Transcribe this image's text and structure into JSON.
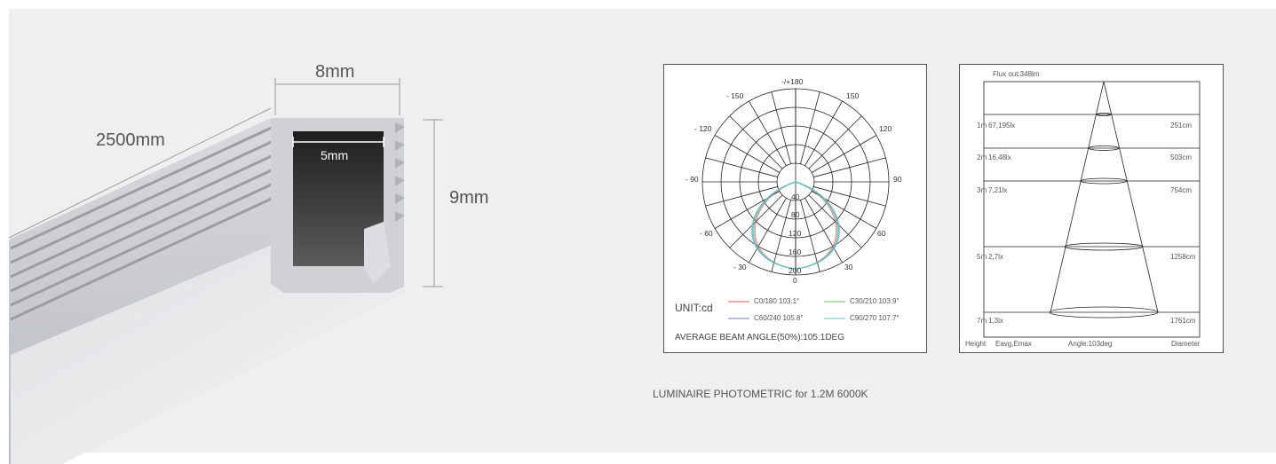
{
  "product": {
    "length_label": "2500mm",
    "width_label": "8mm",
    "inner_width_label": "5mm",
    "height_label": "9mm"
  },
  "polar": {
    "angle_labels": [
      "-/+180",
      "- 150",
      "150",
      "- 120",
      "120",
      "- 90",
      "90",
      "- 60",
      "60",
      "- 30",
      "30",
      "0"
    ],
    "radial_labels": [
      "40",
      "80",
      "120",
      "160",
      "200"
    ],
    "unit_label": "UNIT:cd",
    "legend": [
      {
        "label": "C0/180  103.1°",
        "color": "#d9534f"
      },
      {
        "label": "C30/210  103.9°",
        "color": "#6fbf6f"
      },
      {
        "label": "C60/240  105.8°",
        "color": "#6a7fc4"
      },
      {
        "label": "C90/270  107.7°",
        "color": "#5fc4c4"
      }
    ],
    "beam_angle_label": "AVERAGE BEAM ANGLE(50%):105.1DEG"
  },
  "cone": {
    "flux_label": "Flux out:348lm",
    "rows": [
      {
        "height": "1m",
        "eavg": "67,195lx",
        "diameter": "251cm"
      },
      {
        "height": "2m",
        "eavg": "16,48lx",
        "diameter": "503cm"
      },
      {
        "height": "3m",
        "eavg": "7,21lx",
        "diameter": "754cm"
      },
      {
        "height": "5m",
        "eavg": "2,7lx",
        "diameter": "1258cm"
      },
      {
        "height": "7m",
        "eavg": "1,3lx",
        "diameter": "1761cm"
      }
    ],
    "footer": {
      "height": "Height",
      "eavg": "Eavg,Emax",
      "angle": "Angle:103deg",
      "diameter": "Diameter"
    }
  },
  "caption": "LUMINAIRE PHOTOMETRIC for 1.2M 6000K",
  "colors": {
    "background": "#efefef",
    "profile": "#c9cbcf",
    "profile_dark": "#2a2a2a"
  }
}
